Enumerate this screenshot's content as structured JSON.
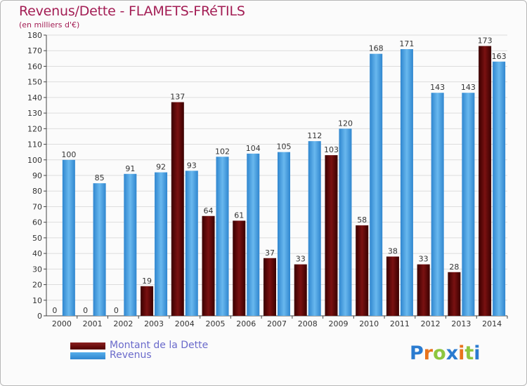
{
  "chart": {
    "title": "Revenus/Dette - FLAMETS-FRéTILS",
    "subtitle": "(en milliers d'€)"
  },
  "legend": {
    "dette_label": "Montant de la Dette",
    "revenus_label": "Revenus"
  },
  "logo": {
    "text": "Proxiti",
    "letters": [
      "P",
      "r",
      "o",
      "x",
      "i",
      "t",
      "i"
    ],
    "letter_colors": [
      "#2a7bd0",
      "#e8731c",
      "#8dc63f",
      "#2a7bd0",
      "#e8731c",
      "#8dc63f",
      "#2a7bd0"
    ]
  },
  "colors": {
    "dette": "#7a1111",
    "revenus": "#4aa3e3",
    "grid": "#dddddd",
    "title": "#a31d54",
    "legend_text": "#6a6acb"
  },
  "chart_data": {
    "type": "bar",
    "title": "Revenus/Dette - FLAMETS-FRéTILS",
    "subtitle": "(en milliers d'€)",
    "categories": [
      "2000",
      "2001",
      "2002",
      "2003",
      "2004",
      "2005",
      "2006",
      "2007",
      "2008",
      "2009",
      "2010",
      "2011",
      "2012",
      "2013",
      "2014"
    ],
    "series": [
      {
        "name": "Montant de la Dette",
        "values": [
          0,
          0,
          0,
          19,
          137,
          64,
          61,
          37,
          33,
          103,
          58,
          38,
          33,
          28,
          173
        ]
      },
      {
        "name": "Revenus",
        "values": [
          100,
          85,
          91,
          92,
          93,
          102,
          104,
          105,
          112,
          120,
          168,
          171,
          143,
          143,
          163
        ]
      }
    ],
    "ylim": [
      0,
      180
    ],
    "yticks": [
      0,
      10,
      20,
      30,
      40,
      50,
      60,
      70,
      80,
      90,
      100,
      110,
      120,
      130,
      140,
      150,
      160,
      170,
      180
    ],
    "grid": true,
    "legend_position": "bottom-left"
  }
}
